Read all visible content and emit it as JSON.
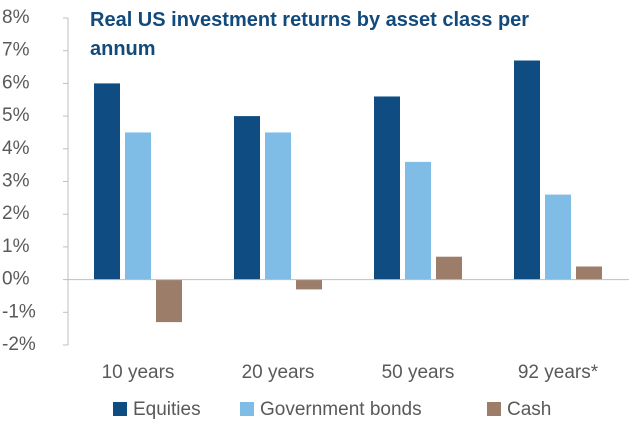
{
  "chart_data": {
    "type": "bar",
    "title": "Real US investment returns by asset class per annum",
    "categories": [
      "10 years",
      "20 years",
      "50 years",
      "92 years*"
    ],
    "series": [
      {
        "name": "Equities",
        "color": "#0f4c81",
        "values": [
          6.0,
          5.0,
          5.6,
          6.7
        ]
      },
      {
        "name": "Government bonds",
        "color": "#7fbde6",
        "values": [
          4.5,
          4.5,
          3.6,
          2.6
        ]
      },
      {
        "name": "Cash",
        "color": "#9c7d69",
        "values": [
          -1.3,
          -0.3,
          0.7,
          0.4
        ]
      }
    ],
    "ylim": [
      -2,
      8
    ],
    "yticks": [
      {
        "value": -2,
        "label": "-2%"
      },
      {
        "value": -1,
        "label": "-1%"
      },
      {
        "value": 0,
        "label": "0%"
      },
      {
        "value": 1,
        "label": "1%"
      },
      {
        "value": 2,
        "label": "2%"
      },
      {
        "value": 3,
        "label": "3%"
      },
      {
        "value": 4,
        "label": "4%"
      },
      {
        "value": 5,
        "label": "5%"
      },
      {
        "value": 6,
        "label": "6%"
      },
      {
        "value": 7,
        "label": "7%"
      },
      {
        "value": 8,
        "label": "8%"
      }
    ],
    "legend": "bottom"
  }
}
